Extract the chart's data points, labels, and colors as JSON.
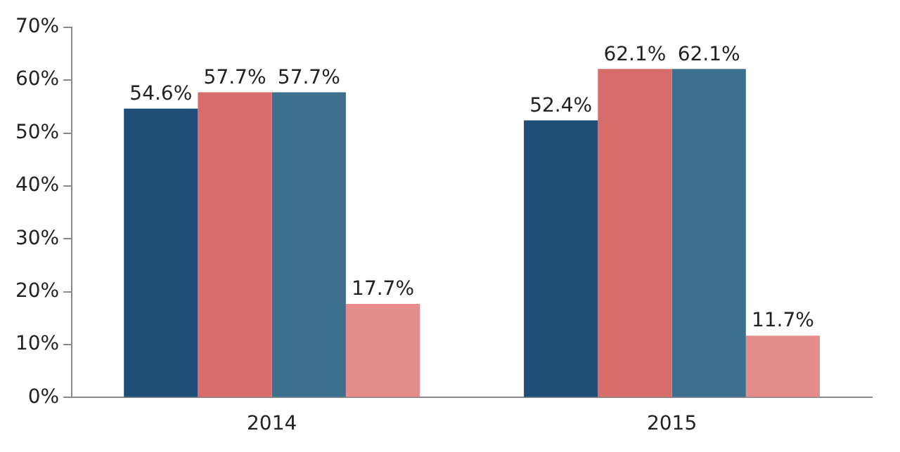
{
  "chart_data": {
    "type": "bar",
    "categories": [
      "2014",
      "2015"
    ],
    "series": [
      {
        "color": "#1f4e79",
        "values": [
          54.6,
          52.4
        ],
        "value_labels": [
          "54.6%",
          "52.4%"
        ]
      },
      {
        "color": "#d86c6a",
        "values": [
          57.7,
          62.1
        ],
        "value_labels": [
          "57.7%",
          "62.1%"
        ]
      },
      {
        "color": "#3d6f8e",
        "values": [
          57.7,
          62.1
        ],
        "value_labels": [
          "57.7%",
          "62.1%"
        ]
      },
      {
        "color": "#e58c8c",
        "values": [
          17.7,
          11.7
        ],
        "value_labels": [
          "17.7%",
          "11.7%"
        ]
      }
    ],
    "ylim": [
      0,
      70
    ],
    "yticks": [
      {
        "value": 0,
        "label": "0%"
      },
      {
        "value": 10,
        "label": "10%"
      },
      {
        "value": 20,
        "label": "20%"
      },
      {
        "value": 30,
        "label": "30%"
      },
      {
        "value": 40,
        "label": "40%"
      },
      {
        "value": 50,
        "label": "50%"
      },
      {
        "value": 60,
        "label": "60%"
      },
      {
        "value": 70,
        "label": "70%"
      }
    ],
    "grid": false,
    "legend": false
  }
}
